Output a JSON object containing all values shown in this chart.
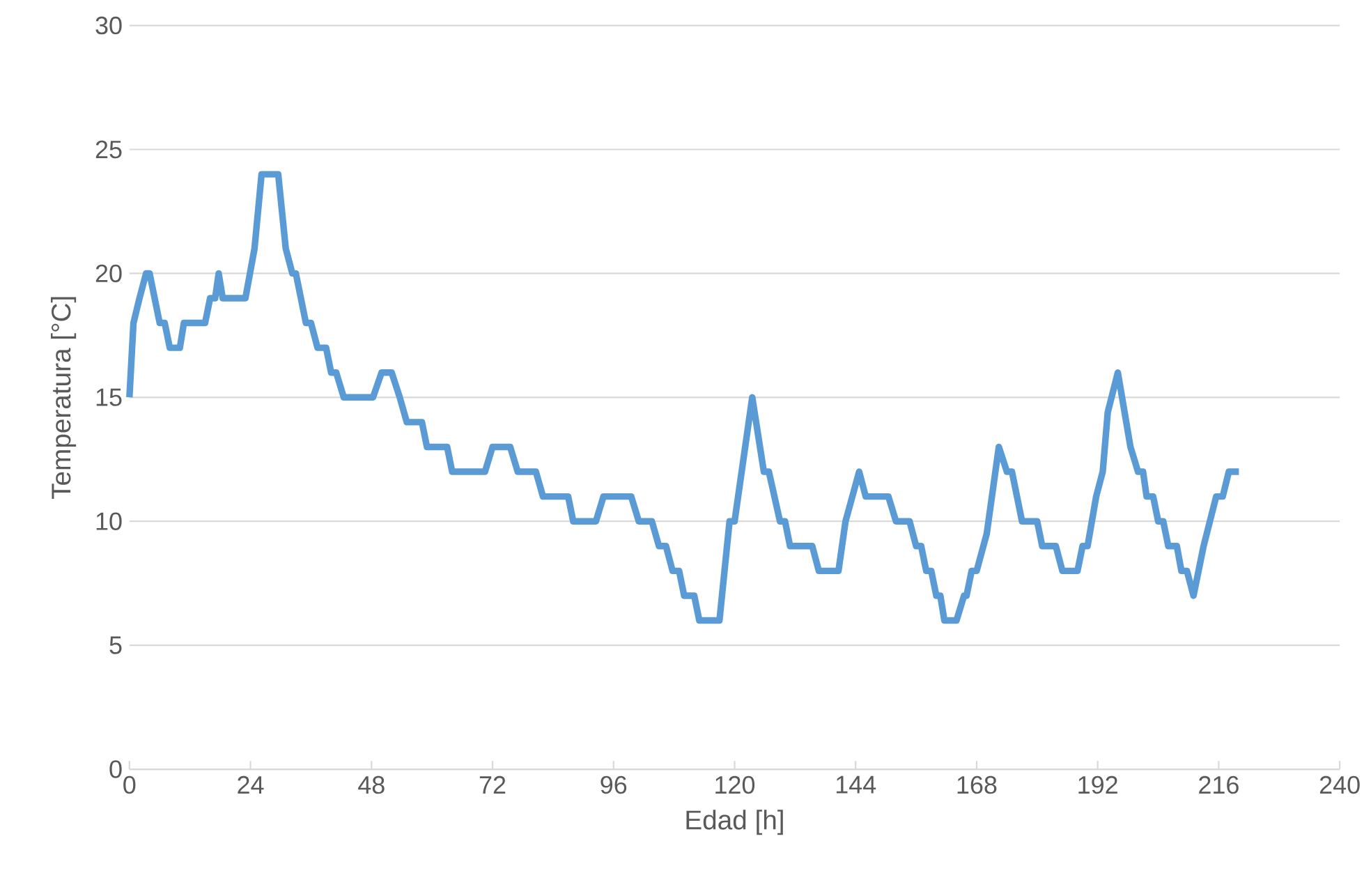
{
  "chart_data": {
    "type": "line",
    "xlabel": "Edad [h]",
    "ylabel": "Temperatura [°C]",
    "xlim": [
      0,
      240
    ],
    "xticks": [
      0,
      24,
      48,
      72,
      96,
      120,
      144,
      168,
      192,
      216,
      240
    ],
    "ylim": [
      0,
      30
    ],
    "yticks": [
      0,
      5,
      10,
      15,
      20,
      25,
      30
    ],
    "grid": "y",
    "marker": "none",
    "line_style": "solid",
    "series": [
      {
        "color": "#5b9bd5",
        "x": [
          0,
          0.8,
          2,
          3.3,
          4,
          5,
          6,
          7,
          8,
          10,
          10.8,
          15,
          16,
          17,
          17.7,
          18.5,
          19,
          23,
          24.8,
          26.2,
          29.5,
          31,
          32.3,
          33,
          35,
          36,
          37.3,
          39,
          40,
          41,
          42.5,
          48.3,
          50,
          52,
          53.6,
          55,
          58,
          59,
          63,
          64,
          70.5,
          72,
          75.5,
          77,
          80.6,
          82,
          87,
          88,
          92.5,
          94,
          99.5,
          101,
          103.6,
          105,
          106.4,
          107.7,
          109,
          110,
          112,
          113,
          117,
          119,
          120,
          123.5,
          125.8,
          126.8,
          129,
          130,
          131,
          135.4,
          136.7,
          140.6,
          142,
          144.7,
          146,
          150.5,
          152,
          154.7,
          156,
          157,
          158,
          159,
          160,
          160.8,
          161.6,
          164,
          165.5,
          166,
          167,
          168,
          170,
          172.4,
          174,
          175,
          177,
          180,
          181,
          183.7,
          185,
          188,
          189,
          190,
          191.7,
          193,
          194,
          196,
          198.5,
          200,
          201,
          201.7,
          203,
          204,
          205,
          206,
          207.7,
          208.6,
          209.7,
          211,
          213,
          215.5,
          216.8,
          218,
          220
        ],
        "values": [
          15,
          18,
          19,
          20,
          20,
          19,
          18,
          18,
          17,
          17,
          18,
          18,
          19,
          19,
          20,
          19,
          19,
          19,
          21,
          24,
          24,
          21,
          20,
          20,
          18,
          18,
          17,
          17,
          16,
          16,
          15,
          15,
          16,
          16,
          15,
          14,
          14,
          13,
          13,
          12,
          12,
          13,
          13,
          12,
          12,
          11,
          11,
          10,
          10,
          11,
          11,
          10,
          10,
          9,
          9,
          8,
          8,
          7,
          7,
          6,
          6,
          10,
          10,
          15,
          12,
          12,
          10,
          10,
          9,
          9,
          8,
          8,
          10,
          12,
          11,
          11,
          10,
          10,
          9,
          9,
          8,
          8,
          7,
          7,
          6,
          6,
          7,
          7,
          8,
          8,
          9.5,
          13,
          12,
          12,
          10,
          10,
          9,
          9,
          8,
          8,
          9,
          9,
          11,
          12,
          14.4,
          16,
          13,
          12,
          12,
          11,
          11,
          10,
          10,
          9,
          9,
          8,
          8,
          7,
          9,
          11,
          11,
          12,
          12
        ]
      }
    ]
  }
}
